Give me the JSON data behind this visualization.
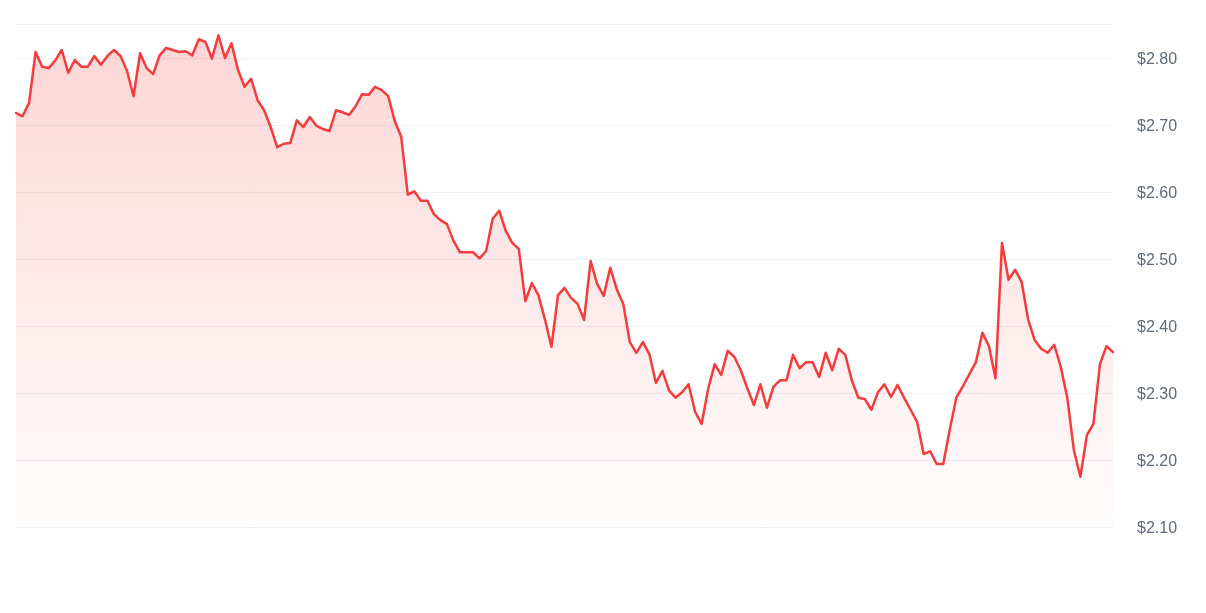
{
  "chart_data": {
    "type": "area",
    "categories": [
      null,
      null,
      null,
      null,
      null,
      null,
      null,
      null,
      null,
      null,
      null,
      null,
      null,
      null,
      null,
      null,
      null,
      null,
      null,
      null,
      null,
      null,
      null,
      null,
      null,
      null,
      null,
      null,
      null,
      null,
      null,
      null,
      null,
      null,
      null,
      null,
      null,
      null,
      null,
      null,
      null,
      null,
      null,
      null,
      null,
      null,
      null,
      null,
      null,
      null,
      null,
      null,
      null,
      null,
      null,
      null,
      null,
      null,
      null,
      null,
      null,
      null,
      null,
      null,
      null,
      null,
      null,
      null,
      null,
      null,
      null,
      null,
      null,
      null,
      null,
      null,
      null,
      null,
      null,
      null,
      null,
      null,
      null,
      null,
      null,
      null,
      null,
      null,
      null,
      null,
      null,
      null,
      null,
      null,
      null,
      null,
      null,
      null,
      null,
      null,
      null,
      null,
      null,
      null,
      null,
      null,
      null,
      null,
      null,
      null,
      null,
      null,
      null,
      null,
      null,
      null,
      null,
      null,
      null,
      null,
      null,
      null,
      null,
      null,
      null,
      null,
      null,
      null,
      null,
      null,
      null,
      null,
      null,
      null,
      null,
      null,
      null,
      null,
      null,
      null,
      null,
      null,
      null,
      null,
      null,
      null,
      null,
      null,
      null,
      null,
      null,
      null,
      null,
      null,
      null,
      null,
      null,
      null,
      null,
      null,
      null,
      null,
      null,
      null,
      null,
      null,
      null,
      null,
      null
    ],
    "series": [
      {
        "color": "#f63b3b",
        "values": [
          2.718,
          2.713,
          2.733,
          2.809,
          2.787,
          2.785,
          2.796,
          2.812,
          2.778,
          2.797,
          2.787,
          2.787,
          2.803,
          2.79,
          2.803,
          2.812,
          2.803,
          2.781,
          2.743,
          2.807,
          2.785,
          2.776,
          2.804,
          2.815,
          2.812,
          2.809,
          2.81,
          2.804,
          2.828,
          2.824,
          2.799,
          2.834,
          2.8,
          2.822,
          2.782,
          2.757,
          2.769,
          2.737,
          2.722,
          2.697,
          2.667,
          2.672,
          2.673,
          2.707,
          2.697,
          2.712,
          2.699,
          2.694,
          2.691,
          2.722,
          2.719,
          2.715,
          2.728,
          2.746,
          2.745,
          2.757,
          2.752,
          2.743,
          2.706,
          2.682,
          2.596,
          2.601,
          2.587,
          2.587,
          2.567,
          2.558,
          2.552,
          2.527,
          2.51,
          2.51,
          2.51,
          2.501,
          2.512,
          2.56,
          2.572,
          2.542,
          2.524,
          2.515,
          2.437,
          2.464,
          2.446,
          2.41,
          2.369,
          2.446,
          2.457,
          2.442,
          2.433,
          2.409,
          2.497,
          2.463,
          2.445,
          2.487,
          2.455,
          2.433,
          2.376,
          2.36,
          2.376,
          2.358,
          2.315,
          2.333,
          2.304,
          2.293,
          2.301,
          2.313,
          2.272,
          2.254,
          2.306,
          2.343,
          2.327,
          2.363,
          2.354,
          2.334,
          2.307,
          2.282,
          2.313,
          2.278,
          2.309,
          2.319,
          2.319,
          2.357,
          2.337,
          2.346,
          2.346,
          2.324,
          2.36,
          2.334,
          2.366,
          2.357,
          2.319,
          2.293,
          2.291,
          2.275,
          2.301,
          2.313,
          2.294,
          2.312,
          2.293,
          2.275,
          2.257,
          2.209,
          2.213,
          2.194,
          2.194,
          2.245,
          2.293,
          2.31,
          2.328,
          2.346,
          2.39,
          2.37,
          2.322,
          2.524,
          2.469,
          2.484,
          2.466,
          2.41,
          2.379,
          2.366,
          2.36,
          2.372,
          2.339,
          2.293,
          2.215,
          2.175,
          2.237,
          2.254,
          2.343,
          2.37,
          2.361
        ]
      }
    ],
    "ylim": [
      2.1,
      2.85
    ],
    "yticks": [
      {
        "value": 2.1,
        "label": "$2.10"
      },
      {
        "value": 2.2,
        "label": "$2.20"
      },
      {
        "value": 2.3,
        "label": "$2.30"
      },
      {
        "value": 2.4,
        "label": "$2.40"
      },
      {
        "value": 2.5,
        "label": "$2.50"
      },
      {
        "value": 2.6,
        "label": "$2.60"
      },
      {
        "value": 2.7,
        "label": "$2.70"
      },
      {
        "value": 2.8,
        "label": "$2.80"
      },
      {
        "value": 2.85,
        "label": null
      }
    ],
    "grid": "y",
    "line_style": "solid",
    "tick_labels": "y"
  }
}
